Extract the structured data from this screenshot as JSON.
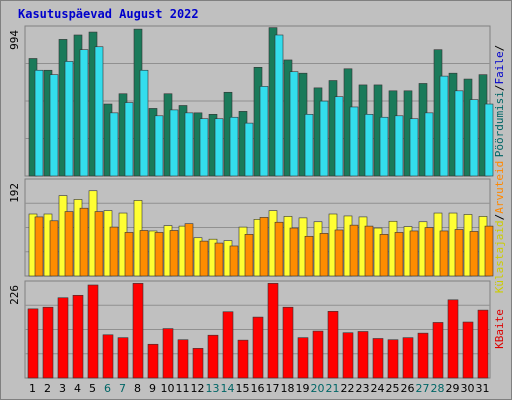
{
  "title": "Kasutuspäevad August 2022",
  "colors": {
    "weekday": "#000000",
    "weekend": "#006666"
  },
  "chart_data": [
    {
      "type": "bar",
      "panel": "top",
      "ytick": "994",
      "ylim": [
        0,
        994
      ],
      "categories": [
        "1",
        "2",
        "3",
        "4",
        "5",
        "6",
        "7",
        "8",
        "9",
        "10",
        "11",
        "12",
        "13",
        "14",
        "15",
        "16",
        "17",
        "18",
        "19",
        "20",
        "21",
        "22",
        "23",
        "24",
        "25",
        "26",
        "27",
        "28",
        "29",
        "30",
        "31"
      ],
      "weekend": [
        false,
        false,
        false,
        false,
        false,
        true,
        true,
        false,
        false,
        false,
        false,
        false,
        true,
        true,
        false,
        false,
        false,
        false,
        false,
        true,
        true,
        false,
        false,
        false,
        false,
        false,
        true,
        true,
        false,
        false,
        false
      ],
      "legend": [
        {
          "text": "Pöördumisi",
          "color": "#006666"
        },
        {
          "text": "/",
          "color": "#000000"
        },
        {
          "text": "Faile",
          "color": "#0000cc"
        },
        {
          "text": "/",
          "color": "#000000"
        }
      ],
      "series": [
        {
          "name": "Pöördumisi",
          "color": "#1a7a5a",
          "values": [
            800,
            720,
            930,
            960,
            980,
            490,
            560,
            1000,
            460,
            560,
            480,
            430,
            420,
            570,
            440,
            740,
            1010,
            790,
            700,
            600,
            650,
            730,
            620,
            620,
            580,
            580,
            630,
            860,
            700,
            660,
            690
          ]
        },
        {
          "name": "Faile",
          "color": "#33dded",
          "values": [
            720,
            690,
            780,
            860,
            880,
            430,
            500,
            720,
            410,
            450,
            430,
            390,
            390,
            400,
            360,
            610,
            960,
            710,
            420,
            510,
            540,
            470,
            420,
            400,
            410,
            390,
            430,
            680,
            580,
            520,
            490
          ]
        }
      ]
    },
    {
      "type": "bar",
      "panel": "middle",
      "ytick": "192",
      "ylim": [
        0,
        192
      ],
      "categories": [
        "1",
        "2",
        "3",
        "4",
        "5",
        "6",
        "7",
        "8",
        "9",
        "10",
        "11",
        "12",
        "13",
        "14",
        "15",
        "16",
        "17",
        "18",
        "19",
        "20",
        "21",
        "22",
        "23",
        "24",
        "25",
        "26",
        "27",
        "28",
        "29",
        "30",
        "31"
      ],
      "legend": [
        {
          "text": "Külastajaid",
          "color": "#cccc00"
        },
        {
          "text": "/",
          "color": "#000000"
        },
        {
          "text": "Arvuteid",
          "color": "#ff8800"
        }
      ],
      "series": [
        {
          "name": "Külastajaid",
          "color": "#ffff33",
          "values": [
            128,
            128,
            166,
            158,
            176,
            135,
            130,
            156,
            93,
            104,
            103,
            79,
            76,
            73,
            101,
            117,
            135,
            123,
            120,
            112,
            128,
            124,
            122,
            99,
            113,
            102,
            112,
            130,
            130,
            127,
            123
          ]
        },
        {
          "name": "Arvuteid",
          "color": "#ff8c00",
          "values": [
            122,
            114,
            133,
            140,
            133,
            101,
            90,
            94,
            90,
            94,
            108,
            72,
            68,
            62,
            86,
            121,
            111,
            99,
            82,
            88,
            95,
            105,
            103,
            86,
            90,
            93,
            100,
            93,
            96,
            92,
            103
          ]
        }
      ]
    },
    {
      "type": "bar",
      "panel": "bottom",
      "ytick": "226",
      "ylim": [
        0,
        226
      ],
      "categories": [
        "1",
        "2",
        "3",
        "4",
        "5",
        "6",
        "7",
        "8",
        "9",
        "10",
        "11",
        "12",
        "13",
        "14",
        "15",
        "16",
        "17",
        "18",
        "19",
        "20",
        "21",
        "22",
        "23",
        "24",
        "25",
        "26",
        "27",
        "28",
        "29",
        "30",
        "31"
      ],
      "legend": [
        {
          "text": "KBaite",
          "color": "#dd0000"
        }
      ],
      "series": [
        {
          "name": "KBaite",
          "color": "#ff0000",
          "values": [
            168,
            172,
            195,
            201,
            226,
            105,
            98,
            230,
            82,
            120,
            93,
            72,
            104,
            161,
            92,
            148,
            230,
            172,
            98,
            114,
            162,
            110,
            113,
            96,
            93,
            98,
            109,
            135,
            190,
            136,
            165
          ]
        }
      ]
    }
  ]
}
